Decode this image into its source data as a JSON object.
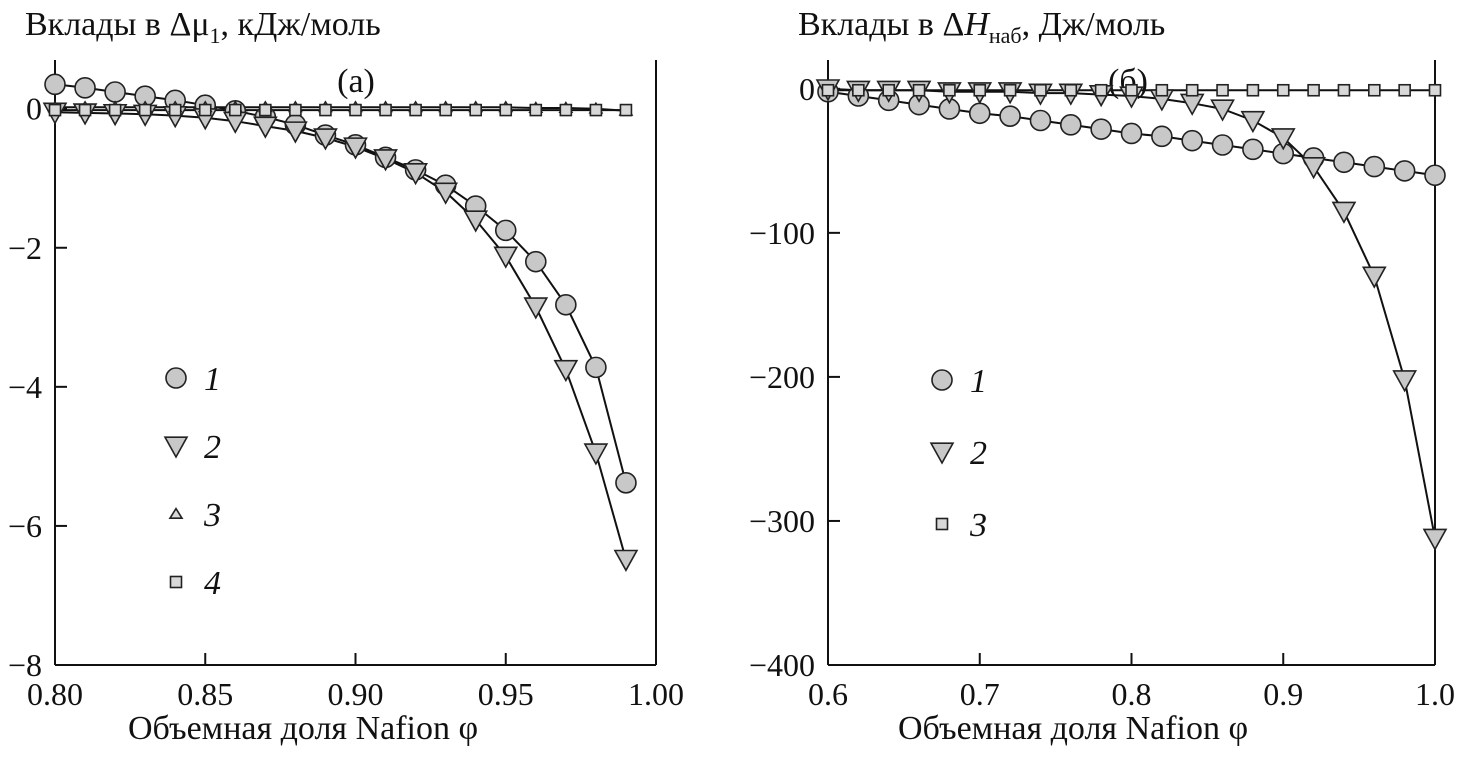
{
  "chart_data": [
    {
      "type": "line",
      "title_prefix": "Вклады в Δμ",
      "title_sub": "1",
      "title_suffix": ", кДж/моль",
      "panel_label": "(а)",
      "xlabel": "Объемная доля Nafion φ",
      "xlim": [
        0.8,
        1.0
      ],
      "ylim": [
        -8,
        0.7
      ],
      "xticks": [
        0.8,
        0.85,
        0.9,
        0.95,
        1.0
      ],
      "xtick_labels": [
        "0.80",
        "0.85",
        "0.90",
        "0.95",
        "1.00"
      ],
      "yticks": [
        0,
        -2,
        -4,
        -6,
        -8
      ],
      "ytick_labels": [
        "0",
        "−2",
        "−4",
        "−6",
        "−8"
      ],
      "grid": false,
      "legend_position": "left-middle",
      "series": [
        {
          "name": "1",
          "marker": "circle",
          "color": "#c8c8c8",
          "x": [
            0.8,
            0.81,
            0.82,
            0.83,
            0.84,
            0.85,
            0.86,
            0.87,
            0.88,
            0.89,
            0.9,
            0.91,
            0.92,
            0.93,
            0.94,
            0.95,
            0.96,
            0.97,
            0.98,
            0.99
          ],
          "y": [
            0.35,
            0.3,
            0.24,
            0.18,
            0.12,
            0.05,
            -0.03,
            -0.12,
            -0.23,
            -0.38,
            -0.52,
            -0.7,
            -0.88,
            -1.1,
            -1.4,
            -1.75,
            -2.2,
            -2.82,
            -3.72,
            -5.38
          ]
        },
        {
          "name": "2",
          "marker": "triangle-down",
          "color": "#c8c8c8",
          "x": [
            0.8,
            0.81,
            0.82,
            0.83,
            0.84,
            0.85,
            0.86,
            0.87,
            0.88,
            0.89,
            0.9,
            0.91,
            0.92,
            0.93,
            0.94,
            0.95,
            0.96,
            0.97,
            0.98,
            0.99
          ],
          "y": [
            -0.05,
            -0.06,
            -0.07,
            -0.08,
            -0.1,
            -0.13,
            -0.18,
            -0.25,
            -0.32,
            -0.42,
            -0.55,
            -0.72,
            -0.92,
            -1.2,
            -1.6,
            -2.12,
            -2.85,
            -3.75,
            -4.95,
            -6.48
          ]
        },
        {
          "name": "3",
          "marker": "triangle-up",
          "color": "#d8d8d8",
          "x": [
            0.8,
            0.81,
            0.82,
            0.83,
            0.84,
            0.85,
            0.86,
            0.87,
            0.88,
            0.89,
            0.9,
            0.91,
            0.92,
            0.93,
            0.94,
            0.95,
            0.96,
            0.97,
            0.98,
            0.99
          ],
          "y": [
            0.02,
            0.02,
            0.02,
            0.02,
            0.02,
            0.02,
            0.02,
            0.02,
            0.02,
            0.02,
            0.02,
            0.02,
            0.02,
            0.02,
            0.02,
            0.02,
            0.01,
            0.01,
            0.0,
            -0.03
          ]
        },
        {
          "name": "4",
          "marker": "square",
          "color": "#d8d8d8",
          "x": [
            0.8,
            0.81,
            0.82,
            0.83,
            0.84,
            0.85,
            0.86,
            0.87,
            0.88,
            0.89,
            0.9,
            0.91,
            0.92,
            0.93,
            0.94,
            0.95,
            0.96,
            0.97,
            0.98,
            0.99
          ],
          "y": [
            -0.02,
            -0.02,
            -0.02,
            -0.02,
            -0.02,
            -0.02,
            -0.02,
            -0.02,
            -0.02,
            -0.02,
            -0.02,
            -0.02,
            -0.02,
            -0.02,
            -0.02,
            -0.02,
            -0.02,
            -0.02,
            -0.02,
            -0.02
          ]
        }
      ]
    },
    {
      "type": "line",
      "title_prefix": "Вклады в Δ",
      "title_italic": "H",
      "title_sub": "наб",
      "title_suffix": ", Дж/моль",
      "panel_label": "(б)",
      "xlabel": "Объемная доля Nafion φ",
      "xlim": [
        0.6,
        1.0
      ],
      "ylim": [
        -400,
        20
      ],
      "xticks": [
        0.6,
        0.7,
        0.8,
        0.9,
        1.0
      ],
      "xtick_labels": [
        "0.6",
        "0.7",
        "0.8",
        "0.9",
        "1.0"
      ],
      "yticks": [
        0,
        -100,
        -200,
        -300,
        -400
      ],
      "ytick_labels": [
        "0",
        "−100",
        "−200",
        "−300",
        "−400"
      ],
      "grid": false,
      "legend_position": "left-middle",
      "series": [
        {
          "name": "1",
          "marker": "circle",
          "color": "#c8c8c8",
          "x": [
            0.6,
            0.62,
            0.64,
            0.66,
            0.68,
            0.7,
            0.72,
            0.74,
            0.76,
            0.78,
            0.8,
            0.82,
            0.84,
            0.86,
            0.88,
            0.9,
            0.92,
            0.94,
            0.96,
            0.98,
            1.0
          ],
          "y": [
            -2,
            -5,
            -8,
            -11,
            -14,
            -17,
            -19,
            -22,
            -25,
            -28,
            -31,
            -33,
            -36,
            -39,
            -42,
            -45,
            -48,
            -51,
            -54,
            -57,
            -60
          ]
        },
        {
          "name": "2",
          "marker": "triangle-down",
          "color": "#c8c8c8",
          "x": [
            0.6,
            0.62,
            0.64,
            0.66,
            0.68,
            0.7,
            0.72,
            0.74,
            0.76,
            0.78,
            0.8,
            0.82,
            0.84,
            0.86,
            0.88,
            0.9,
            0.92,
            0.94,
            0.96,
            0.98,
            1.0
          ],
          "y": [
            0,
            -1,
            -1,
            -1,
            -2,
            -2,
            -2,
            -3,
            -3,
            -4,
            -5,
            -7,
            -10,
            -14,
            -22,
            -34,
            -54,
            -85,
            -130,
            -202,
            -312
          ]
        },
        {
          "name": "3",
          "marker": "square",
          "color": "#d8d8d8",
          "x": [
            0.6,
            0.62,
            0.64,
            0.66,
            0.68,
            0.7,
            0.72,
            0.74,
            0.76,
            0.78,
            0.8,
            0.82,
            0.84,
            0.86,
            0.88,
            0.9,
            0.92,
            0.94,
            0.96,
            0.98,
            1.0
          ],
          "y": [
            -1,
            -1,
            -1,
            -1,
            -1,
            -1,
            -1,
            -1,
            -1,
            -1,
            -1,
            -1,
            -1,
            -1,
            -1,
            -1,
            -1,
            -1,
            -1,
            -1,
            -1
          ]
        }
      ]
    }
  ]
}
